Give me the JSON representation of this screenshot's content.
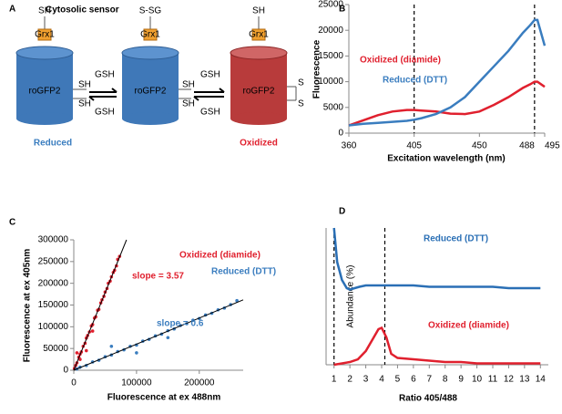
{
  "diagram": {
    "panel": "A",
    "title": "Cytosolic sensor",
    "states": [
      {
        "top": "SH",
        "protein": "roGFP2",
        "enzyme": "Grx1",
        "sites": [
          "SH",
          "SH"
        ],
        "label": "Reduced"
      },
      {
        "top": "S-SG",
        "protein": "roGFP2",
        "enzyme": "Grx1",
        "sites": [
          "SH",
          "SH"
        ]
      },
      {
        "top": "SH",
        "protein": "roGFP2",
        "enzyme": "Grx1",
        "sites": [
          "S",
          "S"
        ],
        "label": "Oxidized"
      }
    ],
    "arrows": [
      [
        "GSH",
        "GSH"
      ],
      [
        "GSH",
        "GSH"
      ]
    ]
  },
  "chart_data": [
    {
      "type": "line",
      "panel": "B",
      "xlabel": "Excitation wavelength (nm)",
      "ylabel": "Fluorescence",
      "x": [
        360,
        370,
        380,
        390,
        400,
        405,
        410,
        420,
        430,
        440,
        450,
        460,
        470,
        480,
        485,
        488,
        490,
        495
      ],
      "series": [
        {
          "name": "Oxidized (diamide)",
          "color": "#e0202e",
          "values": [
            1500,
            2500,
            3500,
            4200,
            4500,
            4500,
            4400,
            4200,
            3800,
            3700,
            4200,
            5500,
            7000,
            8800,
            9500,
            10000,
            10000,
            9000
          ]
        },
        {
          "name": "Reduced (DTT)",
          "color": "#3a7dbf",
          "values": [
            1500,
            1800,
            2000,
            2200,
            2400,
            2600,
            2900,
            3700,
            5000,
            7000,
            10000,
            13000,
            16000,
            19500,
            21000,
            22000,
            22000,
            17000
          ]
        }
      ],
      "xlim": [
        360,
        495
      ],
      "xticks": [
        360,
        405,
        450,
        488,
        495
      ],
      "ylim": [
        0,
        25000
      ],
      "yticks": [
        0,
        5000,
        10000,
        15000,
        20000,
        25000
      ],
      "vlines": [
        405,
        488
      ]
    },
    {
      "type": "scatter",
      "panel": "C",
      "xlabel": "Fluorescence at ex 488nm",
      "ylabel": "Fluorescence at ex 405nm",
      "series": [
        {
          "name": "Oxidized (diamide)",
          "color": "#e0202e",
          "x": [
            1000,
            3000,
            5000,
            8000,
            10000,
            12000,
            15000,
            18000,
            20000,
            22000,
            25000,
            28000,
            30000,
            33000,
            35000,
            38000,
            40000,
            43000,
            45000,
            48000,
            50000,
            53000,
            55000,
            58000,
            60000,
            63000,
            65000,
            68000,
            70000,
            73000,
            20000,
            10000,
            5000,
            30000
          ],
          "values": [
            4000,
            11000,
            17000,
            30000,
            37000,
            42000,
            55000,
            62000,
            74000,
            80000,
            88000,
            102000,
            105000,
            120000,
            123000,
            138000,
            140000,
            155000,
            162000,
            170000,
            180000,
            188000,
            200000,
            205000,
            215000,
            225000,
            230000,
            240000,
            255000,
            262000,
            45000,
            25000,
            40000,
            90000
          ]
        },
        {
          "name": "Reduced (DTT)",
          "color": "#3a7dbf",
          "x": [
            5000,
            10000,
            20000,
            30000,
            40000,
            50000,
            60000,
            70000,
            80000,
            90000,
            100000,
            110000,
            120000,
            130000,
            140000,
            150000,
            160000,
            170000,
            180000,
            190000,
            200000,
            210000,
            220000,
            230000,
            240000,
            250000,
            260000,
            60000,
            100000,
            150000
          ],
          "values": [
            3000,
            7000,
            11000,
            19000,
            23000,
            31000,
            35000,
            43000,
            47000,
            55000,
            58000,
            67000,
            71000,
            79000,
            83000,
            91000,
            95000,
            103000,
            107000,
            115000,
            119000,
            127000,
            131000,
            139000,
            143000,
            151000,
            160000,
            55000,
            40000,
            75000
          ]
        }
      ],
      "fits": [
        {
          "slope": 3.57,
          "label": "slope = 3.57",
          "color": "#e0202e"
        },
        {
          "slope": 0.6,
          "label": "slope = 0.6",
          "color": "#3a7dbf"
        }
      ],
      "xlim": [
        0,
        270000
      ],
      "xticks": [
        0,
        100000,
        200000
      ],
      "ylim": [
        0,
        300000
      ],
      "yticks": [
        0,
        50000,
        100000,
        150000,
        200000,
        250000,
        300000
      ]
    },
    {
      "type": "line",
      "panel": "D",
      "xlabel": "Ratio 405/488",
      "ylabel": "Abundance (%)",
      "series": [
        {
          "name": "Reduced (DTT)",
          "color": "#2a6fb5",
          "x": [
            1,
            1.2,
            1.5,
            1.8,
            2,
            2.3,
            2.6,
            3,
            4,
            5,
            6,
            7,
            8,
            9,
            10,
            11,
            12,
            13,
            14
          ],
          "values": [
            100,
            75,
            62,
            56,
            55,
            56,
            57,
            58,
            58,
            58,
            58,
            57,
            57,
            57,
            57,
            57,
            56,
            56,
            56
          ]
        },
        {
          "name": "Oxidized (diamide)",
          "color": "#e0202e",
          "x": [
            1,
            2,
            2.5,
            3,
            3.5,
            3.8,
            4,
            4.3,
            4.6,
            5,
            6,
            7,
            8,
            9,
            10,
            11,
            12,
            13,
            14
          ],
          "values": [
            0,
            2,
            4,
            10,
            20,
            26,
            27,
            20,
            8,
            5,
            4,
            3,
            2,
            2,
            1,
            1,
            1,
            1,
            1
          ]
        }
      ],
      "xlim": [
        0.5,
        14.5
      ],
      "xticks": [
        1,
        2,
        3,
        4,
        5,
        6,
        7,
        8,
        9,
        10,
        11,
        12,
        13,
        14
      ],
      "ylim": [
        0,
        100
      ],
      "vlines": [
        1,
        4.2
      ]
    }
  ]
}
